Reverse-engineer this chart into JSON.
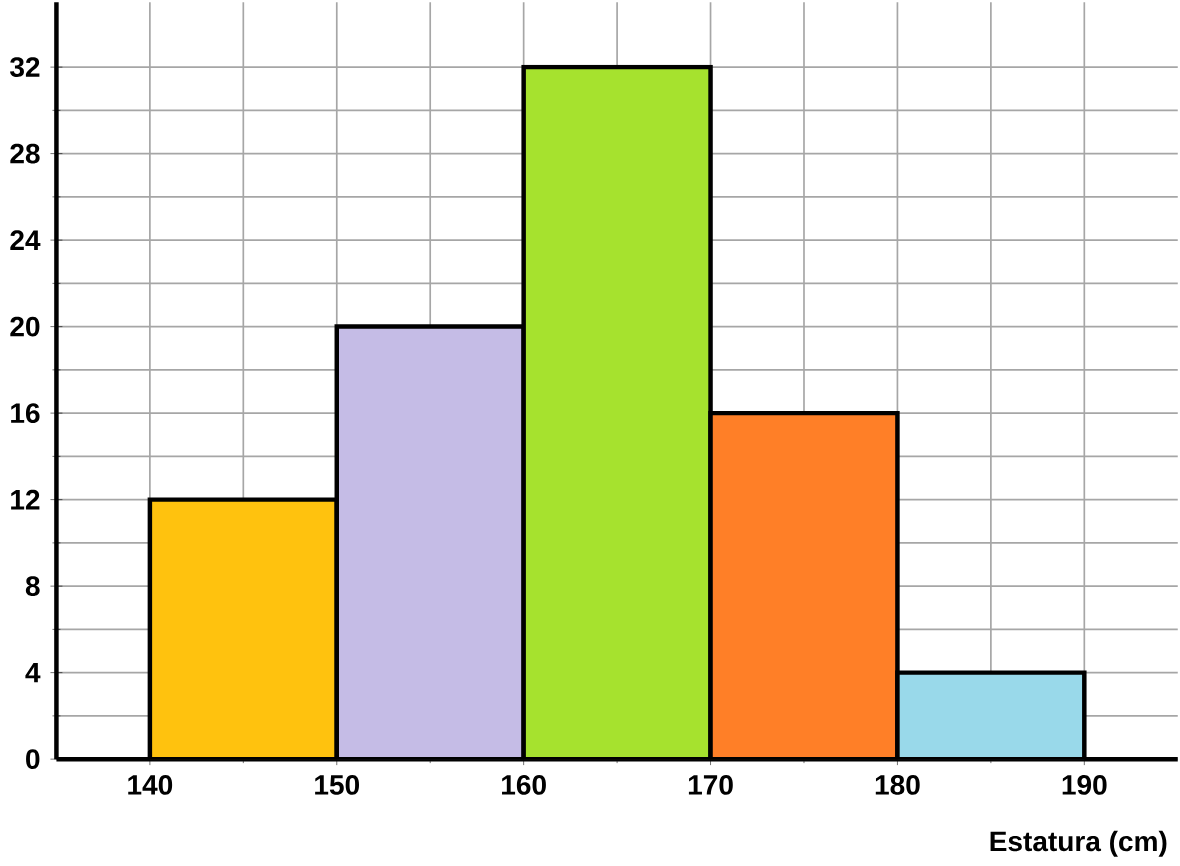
{
  "chart_data": {
    "type": "histogram",
    "xlabel": "Estatura (cm)",
    "bins": [
      140,
      150,
      160,
      170,
      180,
      190
    ],
    "values": [
      12,
      20,
      32,
      16,
      4
    ],
    "colors": [
      "#ffc20e",
      "#c5bce6",
      "#a6e22e",
      "#ff7f27",
      "#99d9ea"
    ],
    "xlim": [
      135,
      195
    ],
    "ylim": [
      0,
      35
    ],
    "xticks": [
      140,
      150,
      160,
      170,
      180,
      190
    ],
    "yticks": [
      0,
      4,
      8,
      12,
      16,
      20,
      24,
      28,
      32
    ],
    "grid": true
  }
}
